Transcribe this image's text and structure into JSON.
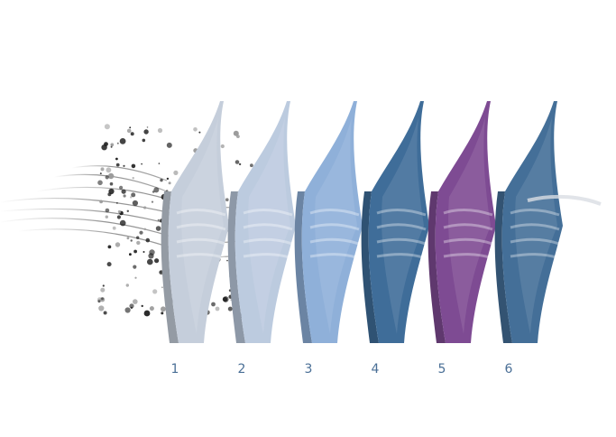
{
  "diagram": {
    "layers": [
      {
        "label": "1",
        "color": "#c5cedb"
      },
      {
        "label": "2",
        "color": "#bccbdf"
      },
      {
        "label": "3",
        "color": "#8fb0d9"
      },
      {
        "label": "4",
        "color": "#3f6d99"
      },
      {
        "label": "5",
        "color": "#7e4b93"
      },
      {
        "label": "6",
        "color": "#446f98"
      }
    ],
    "particle_color": "#1e1e1e"
  }
}
